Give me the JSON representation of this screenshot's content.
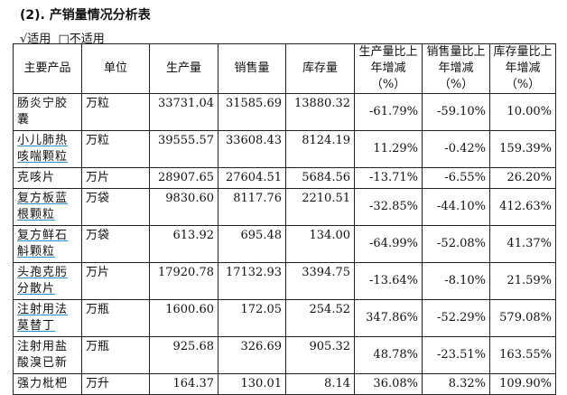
{
  "title": "(2). 产销量情况分析表",
  "applicability": {
    "applicable": "√适用",
    "not_applicable": "□不适用"
  },
  "table": {
    "headers": [
      "主要产品",
      "单位",
      "生产量",
      "销售量",
      "库存量",
      "生产量比上年增减（%）",
      "销售量比上年增减（%）",
      "库存量比上年增减（%）"
    ],
    "rows": [
      {
        "name": "肠炎宁胶囊",
        "unit": "万粒",
        "production": "33731.04",
        "sales": "31585.69",
        "inventory": "13880.32",
        "prod_change": "-61.79%",
        "sales_change": "-59.10%",
        "inv_change": "10.00%",
        "underlined": false
      },
      {
        "name": "小儿肺热咳喘颗粒",
        "unit": "万粒",
        "production": "39555.57",
        "sales": "33608.43",
        "inventory": "8124.19",
        "prod_change": "11.29%",
        "sales_change": "-0.42%",
        "inv_change": "159.39%",
        "underlined": true
      },
      {
        "name": "克咳片",
        "unit": "万片",
        "production": "28907.65",
        "sales": "27604.51",
        "inventory": "5684.56",
        "prod_change": "-13.71%",
        "sales_change": "-6.55%",
        "inv_change": "26.20%",
        "underlined": false
      },
      {
        "name": "复方板蓝根颗粒",
        "unit": "万袋",
        "production": "9830.60",
        "sales": "8117.76",
        "inventory": "2210.51",
        "prod_change": "-32.85%",
        "sales_change": "-44.10%",
        "inv_change": "412.63%",
        "underlined": true
      },
      {
        "name": "复方鲜石斛颗粒",
        "unit": "万袋",
        "production": "613.92",
        "sales": "695.48",
        "inventory": "134.00",
        "prod_change": "-64.99%",
        "sales_change": "-52.08%",
        "inv_change": "41.37%",
        "underlined": true
      },
      {
        "name": "头孢克肟分散片",
        "unit": "万片",
        "production": "17920.78",
        "sales": "17132.93",
        "inventory": "3394.75",
        "prod_change": "-13.64%",
        "sales_change": "-8.10%",
        "inv_change": "21.59%",
        "underlined": true
      },
      {
        "name": "注射用法莫替丁",
        "unit": "万瓶",
        "production": "1600.60",
        "sales": "172.05",
        "inventory": "254.52",
        "prod_change": "347.86%",
        "sales_change": "-52.29%",
        "inv_change": "579.08%",
        "underlined": true
      },
      {
        "name": "注射用盐酸溴已新",
        "unit": "万瓶",
        "production": "925.68",
        "sales": "326.69",
        "inventory": "905.32",
        "prod_change": "48.78%",
        "sales_change": "-23.51%",
        "inv_change": "163.55%",
        "underlined": false
      },
      {
        "name": "强力枇杷",
        "unit": "万升",
        "production": "164.37",
        "sales": "130.01",
        "inventory": "8.14",
        "prod_change": "36.08%",
        "sales_change": "8.32%",
        "inv_change": "109.90%",
        "underlined": false
      }
    ]
  }
}
